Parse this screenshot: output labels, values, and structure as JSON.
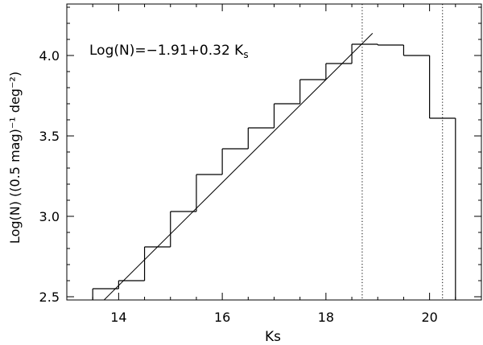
{
  "chart_data": {
    "type": "line",
    "title": "",
    "xlabel": "Ks",
    "ylabel": "Log(N)  ((0.5 mag)⁻¹ deg⁻²)",
    "xlim": [
      13.0,
      21.0
    ],
    "ylim": [
      2.48,
      4.32
    ],
    "x_ticks": [
      14,
      16,
      18,
      20
    ],
    "y_ticks": [
      2.5,
      3.0,
      3.5,
      4.0
    ],
    "x_tick_labels": [
      "14",
      "16",
      "18",
      "20"
    ],
    "y_tick_labels": [
      "2.5",
      "3.0",
      "3.5",
      "4.0"
    ],
    "grid": false,
    "series": [
      {
        "style": "histogram-step",
        "bins": [
          {
            "x0": 13.5,
            "x1": 14.0,
            "y": 2.55
          },
          {
            "x0": 14.0,
            "x1": 14.5,
            "y": 2.6
          },
          {
            "x0": 14.5,
            "x1": 15.0,
            "y": 2.81
          },
          {
            "x0": 15.0,
            "x1": 15.5,
            "y": 3.03
          },
          {
            "x0": 15.5,
            "x1": 16.0,
            "y": 3.26
          },
          {
            "x0": 16.0,
            "x1": 16.5,
            "y": 3.42
          },
          {
            "x0": 16.5,
            "x1": 17.0,
            "y": 3.55
          },
          {
            "x0": 17.0,
            "x1": 17.5,
            "y": 3.7
          },
          {
            "x0": 17.5,
            "x1": 18.0,
            "y": 3.85
          },
          {
            "x0": 18.0,
            "x1": 18.5,
            "y": 3.95
          },
          {
            "x0": 18.5,
            "x1": 19.0,
            "y": 4.07
          },
          {
            "x0": 19.0,
            "x1": 19.5,
            "y": 4.065
          },
          {
            "x0": 19.5,
            "x1": 20.0,
            "y": 4.0
          },
          {
            "x0": 20.0,
            "x1": 20.5,
            "y": 3.61
          }
        ]
      },
      {
        "style": "fit-line",
        "intercept": -1.91,
        "slope": 0.32,
        "x_range": [
          13.6,
          18.9
        ]
      }
    ],
    "reference_lines": [
      {
        "orientation": "vertical",
        "x": 18.7,
        "style": "dotted"
      },
      {
        "orientation": "vertical",
        "x": 20.25,
        "style": "dotted"
      }
    ],
    "annotations": [
      {
        "text": "Log(N)=−1.91+0.32 K",
        "subscript": "s"
      }
    ]
  }
}
